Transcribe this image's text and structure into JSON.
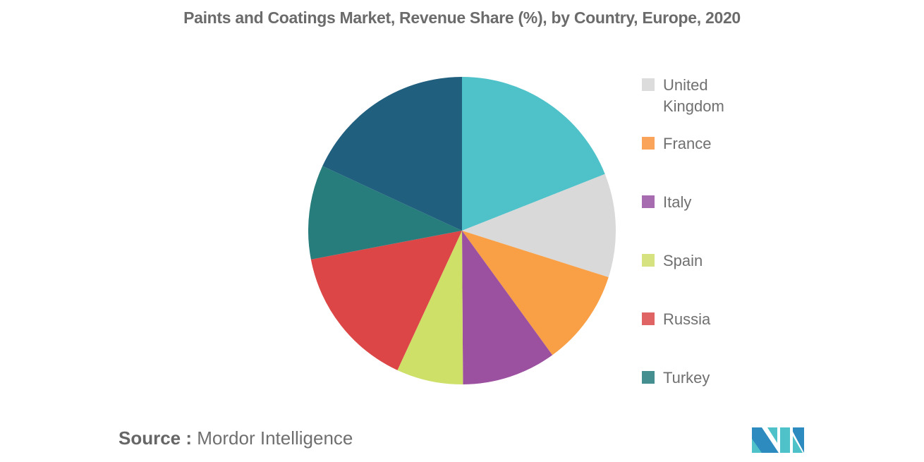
{
  "chart_data": {
    "type": "pie",
    "title": "Paints and Coatings Market, Revenue Share (%), by Country, Europe, 2020",
    "start_angle_deg": 0,
    "direction": "clockwise",
    "slices": [
      {
        "label": "",
        "value": 19.0,
        "color": "#4FC2C9"
      },
      {
        "label": "United Kingdom",
        "value": 10.9,
        "color": "#D9D9D9"
      },
      {
        "label": "France",
        "value": 10.1,
        "color": "#F99F45"
      },
      {
        "label": "Italy",
        "value": 9.9,
        "color": "#9B51A0"
      },
      {
        "label": "Spain",
        "value": 7.0,
        "color": "#CFE069"
      },
      {
        "label": "Russia",
        "value": 15.1,
        "color": "#DC4646"
      },
      {
        "label": "Turkey",
        "value": 9.9,
        "color": "#267D7C"
      },
      {
        "label": "",
        "value": 18.1,
        "color": "#215F7F"
      }
    ],
    "legend": {
      "position": "right",
      "entries": [
        {
          "label": "United Kingdom",
          "color": "#DCDCDC"
        },
        {
          "label": "France",
          "color": "#F9A45A"
        },
        {
          "label": "Italy",
          "color": "#A76BB0"
        },
        {
          "label": "Spain",
          "color": "#D6E27F"
        },
        {
          "label": "Russia",
          "color": "#E06464"
        },
        {
          "label": "Turkey",
          "color": "#468F90"
        }
      ]
    }
  },
  "title": "Paints and Coatings Market, Revenue Share (%), by Country, Europe, 2020",
  "legend": {
    "items": [
      {
        "line1": "United",
        "line2": "Kingdom",
        "color": "#DCDCDC"
      },
      {
        "line1": "France",
        "color": "#F9A45A"
      },
      {
        "line1": "Italy",
        "color": "#A76BB0"
      },
      {
        "line1": "Spain",
        "color": "#D6E27F"
      },
      {
        "line1": "Russia",
        "color": "#E06464"
      },
      {
        "line1": "Turkey",
        "color": "#468F90"
      }
    ]
  },
  "source": {
    "label": "Source :",
    "value": "Mordor Intelligence"
  },
  "logo": {
    "name": "mordor-intelligence-logo",
    "colors": [
      "#2E8BC0",
      "#4FC2C9"
    ]
  }
}
